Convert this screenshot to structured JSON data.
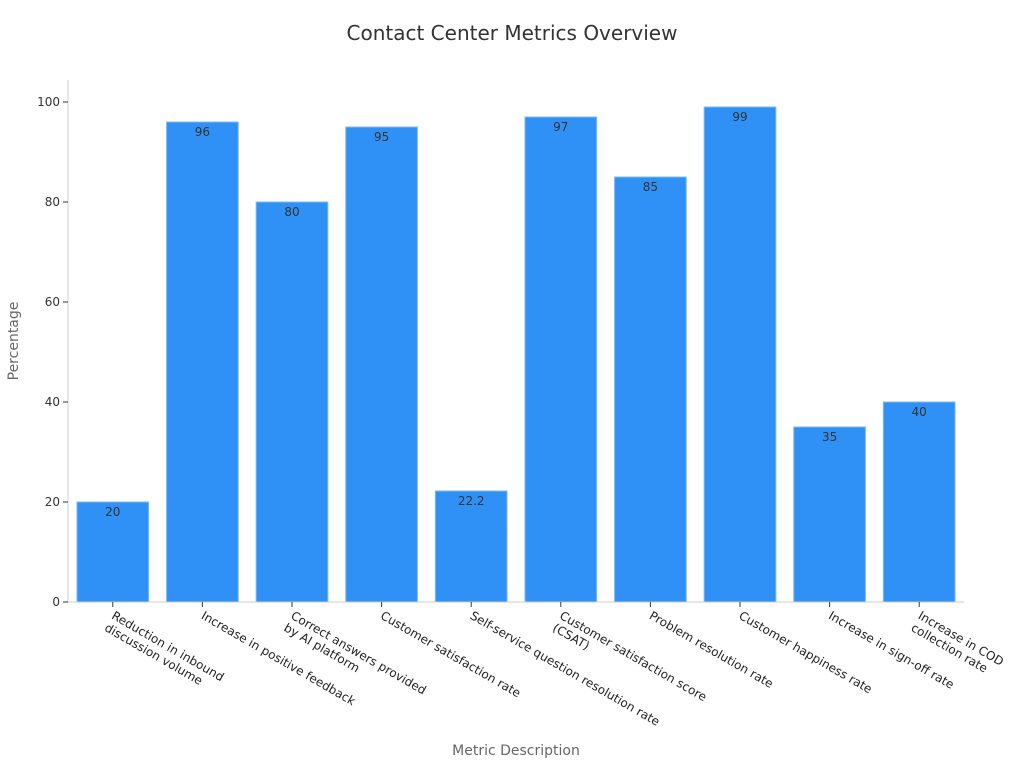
{
  "chart_data": {
    "type": "bar",
    "title": "Contact Center Metrics Overview",
    "xlabel": "Metric Description",
    "ylabel": "Percentage",
    "ylim": [
      0,
      104
    ],
    "yticks": [
      0,
      20,
      40,
      60,
      80,
      100
    ],
    "grid": false,
    "bar_color": "#2f91f5",
    "categories": [
      "Reduction in inbound\ndiscussion volume",
      "Increase in positive feedback",
      "Correct answers provided\nby AI platform",
      "Customer satisfaction rate",
      "Self-service question resolution rate",
      "Customer satisfaction score\n(CSAT)",
      "Problem resolution rate",
      "Customer happiness rate",
      "Increase in sign-off rate",
      "Increase in COD\ncollection rate"
    ],
    "values": [
      20,
      96,
      80,
      95,
      22.2,
      97,
      85,
      99,
      35,
      40
    ],
    "value_labels": [
      "20",
      "96",
      "80",
      "95",
      "22.2",
      "97",
      "85",
      "99",
      "35",
      "40"
    ]
  }
}
